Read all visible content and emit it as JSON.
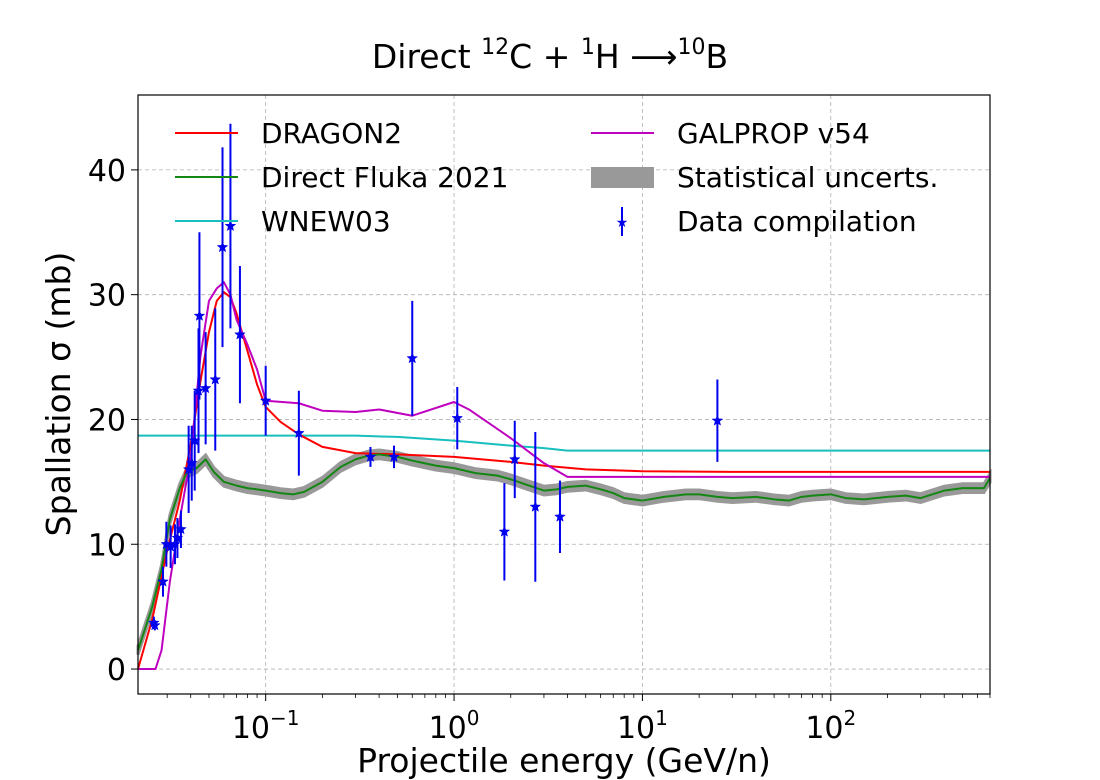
{
  "chart_data": {
    "type": "line",
    "title": {
      "prefix": "Direct ",
      "mass1": "12",
      "element1": "C + ",
      "mass2": "1",
      "element2": "H ",
      "arrow": "⟶",
      "mass3": "10",
      "element3": "B"
    },
    "xlabel": "Projectile energy (GeV/n)",
    "ylabel": "Spallation σ (mb)",
    "xscale": "log",
    "xlim": [
      0.021,
      700
    ],
    "ylim": [
      -2,
      46
    ],
    "grid": true,
    "legend_position": "top",
    "x_ticks": [
      {
        "value": 0.1,
        "base": "10",
        "exp": "−1"
      },
      {
        "value": 1,
        "base": "10",
        "exp": "0"
      },
      {
        "value": 10,
        "base": "10",
        "exp": "1"
      },
      {
        "value": 100,
        "base": "10",
        "exp": "2"
      }
    ],
    "y_ticks": [
      0,
      10,
      20,
      30,
      40
    ],
    "series": [
      {
        "name": "DRAGON2",
        "color": "#ff0000",
        "points": [
          [
            0.021,
            0
          ],
          [
            0.025,
            4
          ],
          [
            0.03,
            9.5
          ],
          [
            0.035,
            13.5
          ],
          [
            0.04,
            18
          ],
          [
            0.045,
            23
          ],
          [
            0.05,
            27
          ],
          [
            0.055,
            29.5
          ],
          [
            0.06,
            30.2
          ],
          [
            0.065,
            29.8
          ],
          [
            0.07,
            28.5
          ],
          [
            0.08,
            25.5
          ],
          [
            0.09,
            22.8
          ],
          [
            0.1,
            21
          ],
          [
            0.12,
            19.8
          ],
          [
            0.15,
            18.8
          ],
          [
            0.2,
            17.8
          ],
          [
            0.3,
            17.3
          ],
          [
            0.5,
            17.2
          ],
          [
            1,
            17
          ],
          [
            2,
            16.6
          ],
          [
            3,
            16.3
          ],
          [
            5,
            16
          ],
          [
            10,
            15.85
          ],
          [
            30,
            15.8
          ],
          [
            100,
            15.8
          ],
          [
            700,
            15.8
          ]
        ]
      },
      {
        "name": "Direct Fluka 2021",
        "color": "#138613",
        "points": [
          [
            0.021,
            1.5
          ],
          [
            0.025,
            5
          ],
          [
            0.028,
            8
          ],
          [
            0.031,
            12
          ],
          [
            0.035,
            14.5
          ],
          [
            0.038,
            15.7
          ],
          [
            0.043,
            16.1
          ],
          [
            0.048,
            16.8
          ],
          [
            0.053,
            15.8
          ],
          [
            0.06,
            15
          ],
          [
            0.07,
            14.7
          ],
          [
            0.08,
            14.5
          ],
          [
            0.09,
            14.4
          ],
          [
            0.1,
            14.3
          ],
          [
            0.12,
            14.1
          ],
          [
            0.14,
            14
          ],
          [
            0.16,
            14.2
          ],
          [
            0.2,
            15
          ],
          [
            0.25,
            16.2
          ],
          [
            0.3,
            16.8
          ],
          [
            0.35,
            17.1
          ],
          [
            0.4,
            17.2
          ],
          [
            0.5,
            17
          ],
          [
            0.6,
            16.7
          ],
          [
            0.8,
            16.3
          ],
          [
            1,
            16.1
          ],
          [
            1.3,
            15.7
          ],
          [
            1.7,
            15.5
          ],
          [
            2,
            15.2
          ],
          [
            2.5,
            14.7
          ],
          [
            3,
            14.3
          ],
          [
            3.5,
            14.4
          ],
          [
            4,
            14.6
          ],
          [
            5,
            14.7
          ],
          [
            6,
            14.4
          ],
          [
            7,
            14.1
          ],
          [
            8,
            13.7
          ],
          [
            10,
            13.5
          ],
          [
            13,
            13.8
          ],
          [
            17,
            14
          ],
          [
            20,
            14
          ],
          [
            25,
            13.8
          ],
          [
            30,
            13.7
          ],
          [
            40,
            13.8
          ],
          [
            50,
            13.6
          ],
          [
            60,
            13.5
          ],
          [
            70,
            13.8
          ],
          [
            80,
            13.9
          ],
          [
            100,
            14
          ],
          [
            120,
            13.7
          ],
          [
            150,
            13.6
          ],
          [
            200,
            13.8
          ],
          [
            250,
            13.9
          ],
          [
            300,
            13.7
          ],
          [
            400,
            14.3
          ],
          [
            500,
            14.5
          ],
          [
            650,
            14.5
          ],
          [
            700,
            15.3
          ]
        ]
      },
      {
        "name": "WNEW03",
        "color": "#17bfbf",
        "points": [
          [
            0.021,
            18.7
          ],
          [
            0.1,
            18.7
          ],
          [
            0.3,
            18.7
          ],
          [
            0.5,
            18.6
          ],
          [
            1,
            18.3
          ],
          [
            2,
            17.9
          ],
          [
            3,
            17.7
          ],
          [
            4,
            17.5
          ],
          [
            10,
            17.5
          ],
          [
            100,
            17.5
          ],
          [
            700,
            17.5
          ]
        ]
      },
      {
        "name": "GALPROP v54",
        "color": "#bf00bf",
        "points": [
          [
            0.021,
            0
          ],
          [
            0.026,
            0
          ],
          [
            0.028,
            1.5
          ],
          [
            0.031,
            7
          ],
          [
            0.035,
            12
          ],
          [
            0.04,
            17
          ],
          [
            0.045,
            25
          ],
          [
            0.05,
            29.5
          ],
          [
            0.055,
            30.5
          ],
          [
            0.06,
            31
          ],
          [
            0.065,
            30
          ],
          [
            0.07,
            28
          ],
          [
            0.08,
            26
          ],
          [
            0.09,
            24
          ],
          [
            0.1,
            21.5
          ],
          [
            0.15,
            21.3
          ],
          [
            0.2,
            20.7
          ],
          [
            0.3,
            20.6
          ],
          [
            0.4,
            20.8
          ],
          [
            0.6,
            20.3
          ],
          [
            1,
            21.4
          ],
          [
            1.2,
            20.8
          ],
          [
            2,
            18.5
          ],
          [
            3,
            16.5
          ],
          [
            4,
            15.4
          ],
          [
            5,
            15.4
          ],
          [
            10,
            15.4
          ],
          [
            100,
            15.4
          ],
          [
            700,
            15.4
          ]
        ]
      }
    ],
    "band": {
      "name": "Statistical uncerts.",
      "color": "#999999",
      "halfwidth": 0.35
    },
    "data_compilation": {
      "name": "Data compilation",
      "color": "#0000ee",
      "points": [
        {
          "x": 0.0255,
          "y": 3.7,
          "err": 0.5
        },
        {
          "x": 0.0258,
          "y": 3.5,
          "err": 0.4
        },
        {
          "x": 0.0285,
          "y": 7,
          "err": 1.2
        },
        {
          "x": 0.0297,
          "y": 10,
          "err": 1.8
        },
        {
          "x": 0.0313,
          "y": 9.8,
          "err": 1.7
        },
        {
          "x": 0.033,
          "y": 10,
          "err": 1.6
        },
        {
          "x": 0.034,
          "y": 10.5,
          "err": 1.6
        },
        {
          "x": 0.0355,
          "y": 11.2,
          "err": 1.5
        },
        {
          "x": 0.039,
          "y": 16,
          "err": 3.5
        },
        {
          "x": 0.0405,
          "y": 16.5,
          "err": 3
        },
        {
          "x": 0.042,
          "y": 18.3,
          "err": 4
        },
        {
          "x": 0.044,
          "y": 22.3,
          "err": 5
        },
        {
          "x": 0.0445,
          "y": 28.3,
          "err": 6.7
        },
        {
          "x": 0.048,
          "y": 22.5,
          "err": 4.5
        },
        {
          "x": 0.054,
          "y": 23.2,
          "err": 5.7
        },
        {
          "x": 0.059,
          "y": 33.8,
          "err": 8
        },
        {
          "x": 0.065,
          "y": 35.5,
          "err": 8.2
        },
        {
          "x": 0.073,
          "y": 26.8,
          "err": 5.5
        },
        {
          "x": 0.1,
          "y": 21.5,
          "err": 2.8
        },
        {
          "x": 0.15,
          "y": 18.9,
          "err": 3.4
        },
        {
          "x": 0.36,
          "y": 17,
          "err": 0.8
        },
        {
          "x": 0.48,
          "y": 17,
          "err": 0.9
        },
        {
          "x": 0.6,
          "y": 24.9,
          "err": 4.6
        },
        {
          "x": 1.04,
          "y": 20.1,
          "err": 2.5
        },
        {
          "x": 1.85,
          "y": 11,
          "err": 3.9
        },
        {
          "x": 2.1,
          "y": 16.8,
          "err": 3.1
        },
        {
          "x": 2.7,
          "y": 13,
          "err": 6
        },
        {
          "x": 3.65,
          "y": 12.2,
          "err": 2.9
        },
        {
          "x": 25,
          "y": 19.9,
          "err": 3.3
        }
      ]
    }
  }
}
